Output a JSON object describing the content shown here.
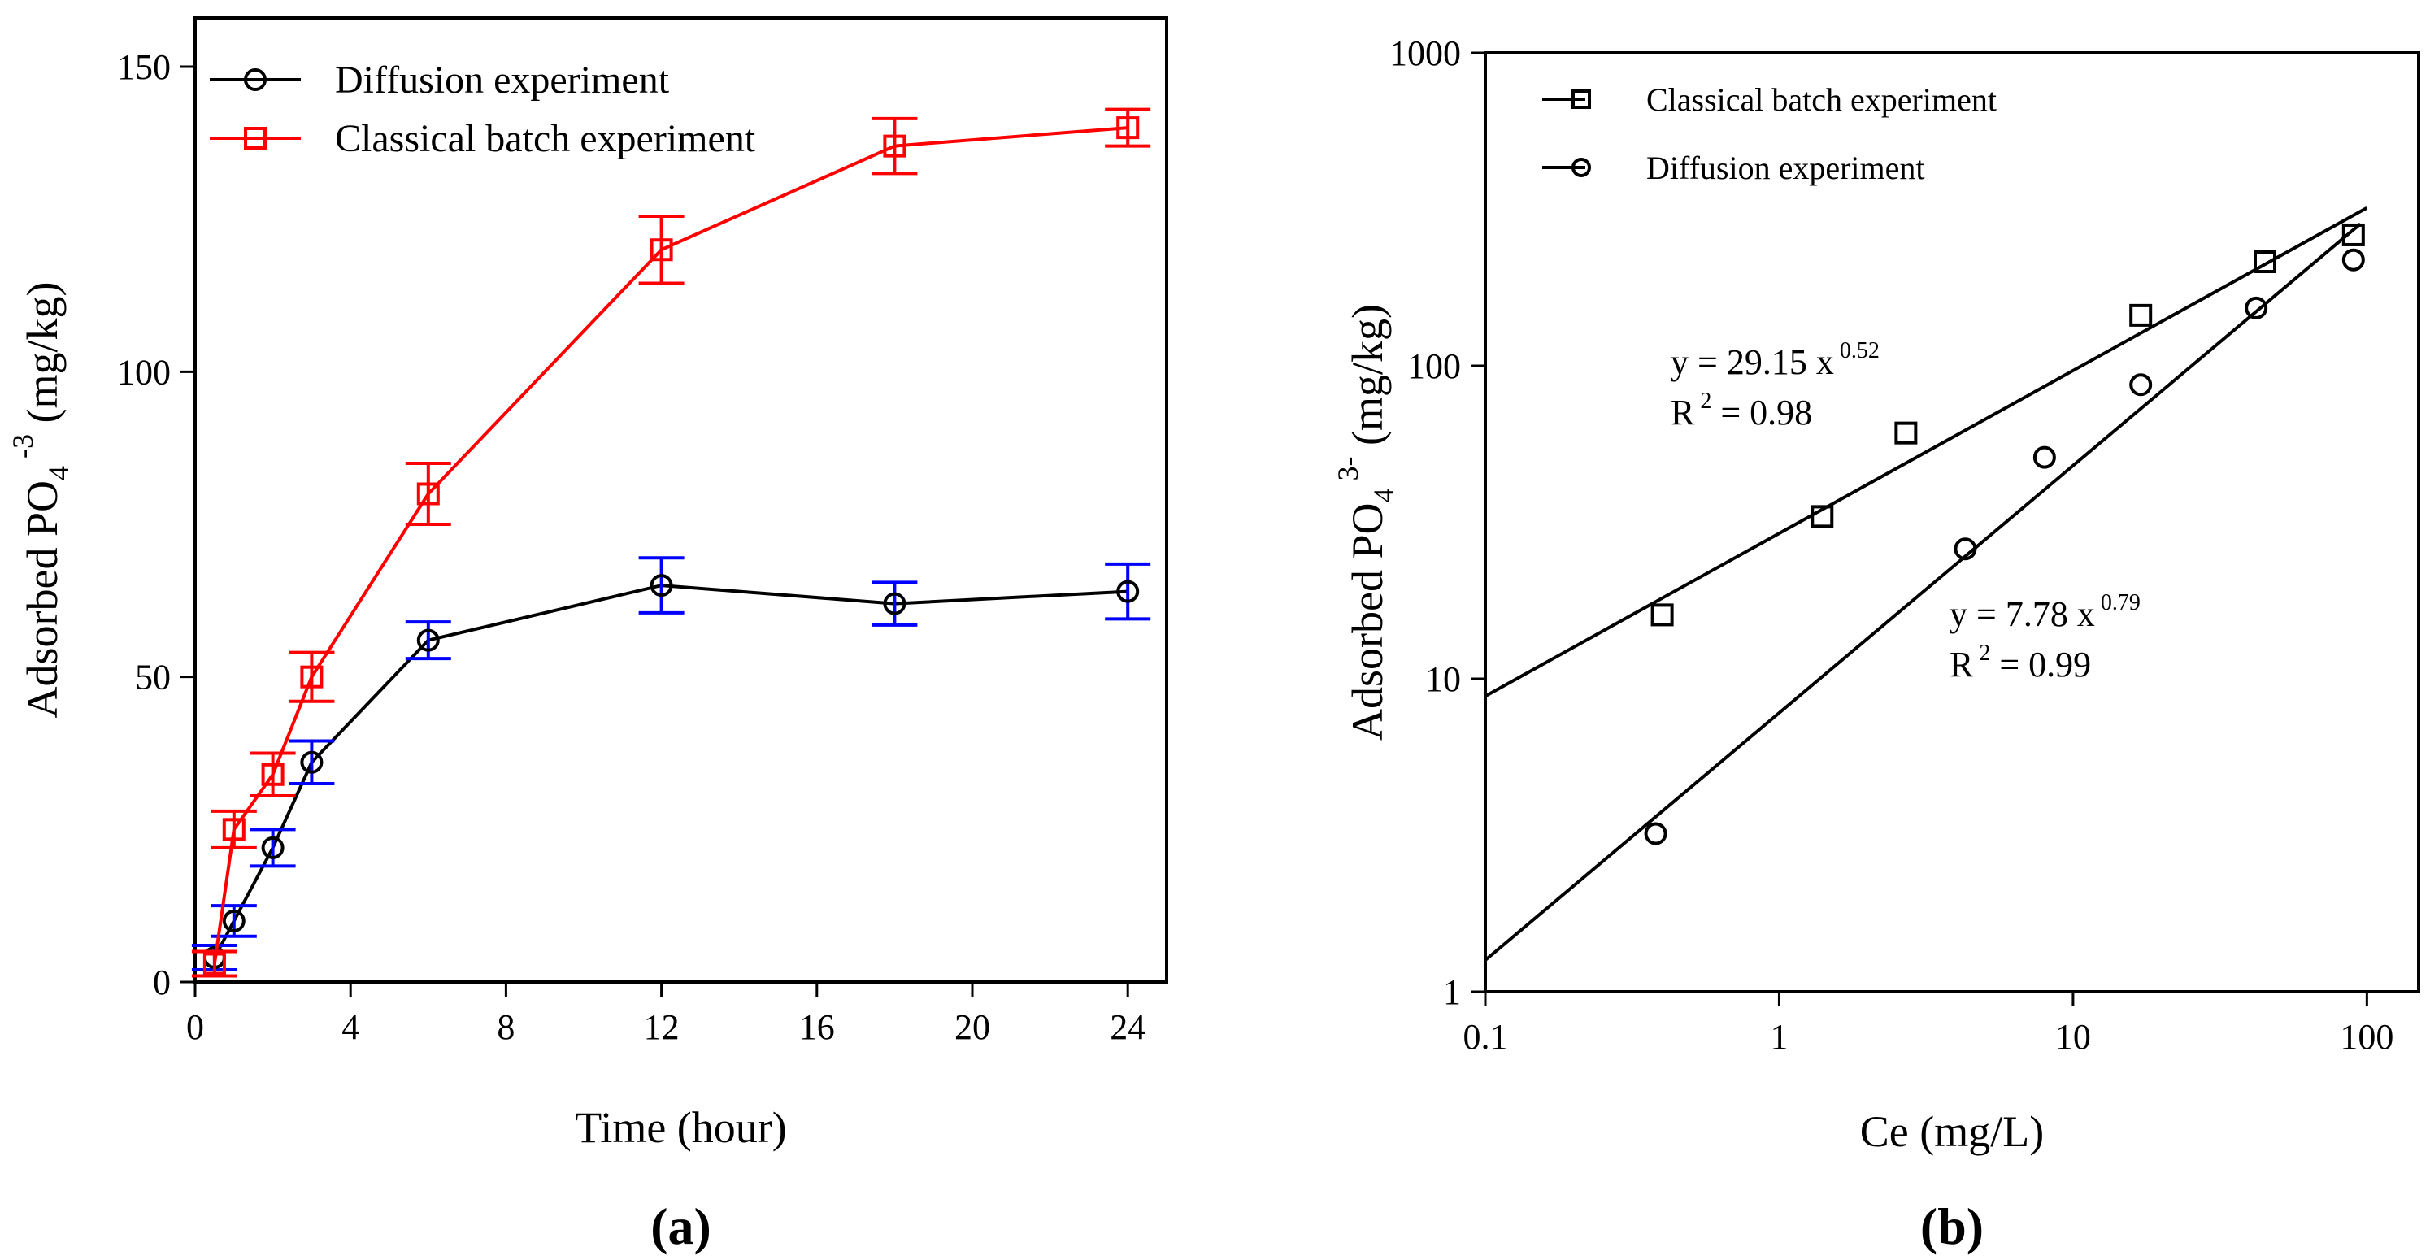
{
  "chart_data": [
    {
      "panel": "a",
      "type": "line",
      "panel_label": "(a)",
      "xlabel": "Time (hour)",
      "ylabel": "Adsorbed PO4 -3 (mg/kg)",
      "ylabel_main": "Adsorbed PO",
      "ylabel_sub": "4",
      "ylabel_sup": "-3",
      "ylabel_unit": " (mg/kg)",
      "xlim": [
        0,
        25
      ],
      "ylim": [
        0,
        158
      ],
      "xticks": [
        0,
        4,
        8,
        12,
        16,
        20,
        24
      ],
      "yticks": [
        0,
        50,
        100,
        150
      ],
      "legend_position": "top-left",
      "series": [
        {
          "name": "Diffusion experiment",
          "color": "#000000",
          "errorbar_color": "#0000ff",
          "marker": "circle",
          "x": [
            0.5,
            1,
            2,
            3,
            6,
            12,
            18,
            24
          ],
          "values": [
            4,
            10,
            22,
            36,
            56,
            65,
            62,
            64
          ],
          "errors": [
            2,
            2.5,
            3,
            3.5,
            3,
            4.5,
            3.5,
            4.5
          ]
        },
        {
          "name": "Classical batch experiment",
          "color": "#ff0000",
          "errorbar_color": "#ff0000",
          "marker": "square",
          "x": [
            0.5,
            1,
            2,
            3,
            6,
            12,
            18,
            24
          ],
          "values": [
            3,
            25,
            34,
            50,
            80,
            120,
            137,
            140
          ],
          "errors": [
            2,
            3,
            3.5,
            4,
            5,
            5.5,
            4.5,
            3
          ]
        }
      ]
    },
    {
      "panel": "b",
      "type": "scatter",
      "panel_label": "(b)",
      "xlabel": "Ce (mg/L)",
      "ylabel": "Adsorbed PO4 3- (mg/kg)",
      "ylabel_main": "Adsorbed PO",
      "ylabel_sub": "4",
      "ylabel_sup": "3-",
      "ylabel_unit": " (mg/kg)",
      "xscale": "log",
      "yscale": "log",
      "xlim": [
        0.1,
        150
      ],
      "ylim": [
        1,
        1000
      ],
      "xticks": [
        0.1,
        1,
        10,
        100
      ],
      "xtick_labels": [
        "0.1",
        "1",
        "10",
        "100"
      ],
      "yticks": [
        1,
        10,
        100,
        1000
      ],
      "ytick_labels": [
        "1",
        "10",
        "100",
        "1000"
      ],
      "legend_position": "top-left",
      "series": [
        {
          "name": "Classical batch experiment",
          "color": "#000000",
          "marker": "square",
          "x": [
            0.4,
            1.4,
            2.7,
            17,
            45,
            90
          ],
          "values": [
            16,
            33,
            61,
            145,
            215,
            262
          ],
          "fit": {
            "a": 29.15,
            "b": 0.52,
            "eq_main": "y = 29.15 x",
            "eq_exp": "0.52",
            "r2_main": "R",
            "r2_sup": "2",
            "r2_value": " = 0.98"
          }
        },
        {
          "name": "Diffusion experiment",
          "color": "#000000",
          "marker": "circle",
          "x": [
            0.38,
            4.3,
            8,
            17,
            42,
            90
          ],
          "values": [
            3.2,
            26,
            51,
            87,
            153,
            218
          ],
          "fit": {
            "a": 7.78,
            "b": 0.79,
            "eq_main": "y = 7.78 x",
            "eq_exp": "0.79",
            "r2_main": "R",
            "r2_sup": "2",
            "r2_value": " = 0.99"
          }
        }
      ]
    }
  ]
}
